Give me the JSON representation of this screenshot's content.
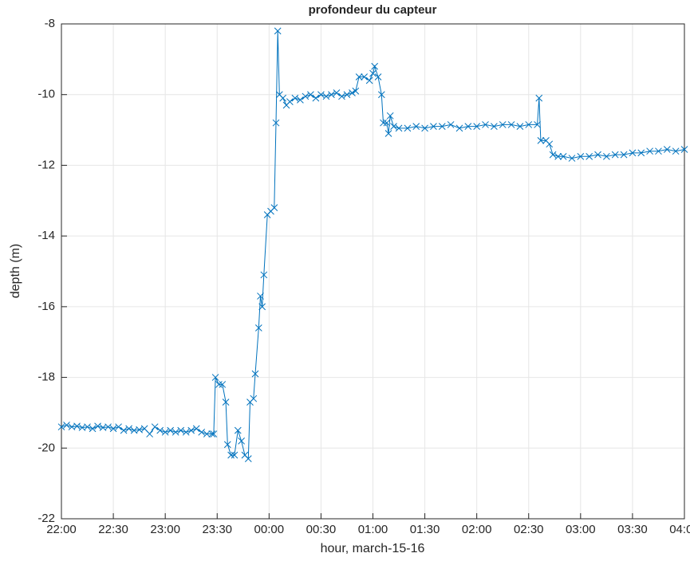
{
  "chart_data": {
    "type": "line",
    "title": "profondeur du capteur",
    "xlabel": "hour, march-15-16",
    "ylabel": "depth (m)",
    "series": [
      {
        "color": "#0072bd",
        "x": [
          "22:00",
          "22:03",
          "22:06",
          "22:09",
          "22:12",
          "22:15",
          "22:18",
          "22:21",
          "22:24",
          "22:27",
          "22:30",
          "22:33",
          "22:36",
          "22:39",
          "22:42",
          "22:45",
          "22:48",
          "22:51",
          "22:54",
          "22:57",
          "23:00",
          "23:03",
          "23:06",
          "23:09",
          "23:12",
          "23:15",
          "23:18",
          "23:21",
          "23:24",
          "23:27",
          "23:28",
          "23:29",
          "23:31",
          "23:33",
          "23:35",
          "23:36",
          "23:38",
          "23:40",
          "23:42",
          "23:44",
          "23:46",
          "23:48",
          "23:49",
          "23:51",
          "23:52",
          "23:54",
          "23:55",
          "23:56",
          "23:57",
          "23:59",
          "00:01",
          "00:03",
          "00:04",
          "00:05",
          "00:06",
          "00:08",
          "00:10",
          "00:12",
          "00:15",
          "00:18",
          "00:21",
          "00:24",
          "00:27",
          "00:30",
          "00:33",
          "00:36",
          "00:39",
          "00:42",
          "00:45",
          "00:48",
          "00:50",
          "00:52",
          "00:55",
          "00:58",
          "01:00",
          "01:01",
          "01:03",
          "01:05",
          "01:06",
          "01:08",
          "01:09",
          "01:10",
          "01:12",
          "01:15",
          "01:20",
          "01:25",
          "01:30",
          "01:35",
          "01:40",
          "01:45",
          "01:50",
          "01:55",
          "02:00",
          "02:05",
          "02:10",
          "02:15",
          "02:20",
          "02:25",
          "02:30",
          "02:35",
          "02:36",
          "02:37",
          "02:40",
          "02:42",
          "02:44",
          "02:47",
          "02:50",
          "02:55",
          "03:00",
          "03:05",
          "03:10",
          "03:15",
          "03:20",
          "03:25",
          "03:30",
          "03:35",
          "03:40",
          "03:45",
          "03:50",
          "03:55",
          "04:00"
        ],
        "values": [
          -19.4,
          -19.35,
          -19.4,
          -19.38,
          -19.42,
          -19.4,
          -19.45,
          -19.38,
          -19.42,
          -19.4,
          -19.45,
          -19.4,
          -19.5,
          -19.45,
          -19.5,
          -19.48,
          -19.45,
          -19.6,
          -19.4,
          -19.5,
          -19.55,
          -19.5,
          -19.55,
          -19.5,
          -19.55,
          -19.5,
          -19.45,
          -19.55,
          -19.6,
          -19.6,
          -19.6,
          -18.0,
          -18.2,
          -18.2,
          -18.7,
          -19.9,
          -20.2,
          -20.2,
          -19.5,
          -19.8,
          -20.2,
          -20.3,
          -18.7,
          -18.6,
          -17.9,
          -16.6,
          -15.7,
          -16.0,
          -15.1,
          -13.4,
          -13.3,
          -13.2,
          -10.8,
          -8.2,
          -10.0,
          -10.1,
          -10.3,
          -10.2,
          -10.1,
          -10.15,
          -10.05,
          -10.0,
          -10.1,
          -10.0,
          -10.05,
          -10.0,
          -9.95,
          -10.05,
          -10.0,
          -9.95,
          -9.9,
          -9.5,
          -9.5,
          -9.6,
          -9.4,
          -9.2,
          -9.5,
          -10.0,
          -10.8,
          -10.8,
          -11.1,
          -10.6,
          -10.9,
          -10.95,
          -10.95,
          -10.9,
          -10.95,
          -10.9,
          -10.9,
          -10.85,
          -10.95,
          -10.9,
          -10.9,
          -10.85,
          -10.9,
          -10.85,
          -10.85,
          -10.9,
          -10.85,
          -10.85,
          -10.1,
          -11.3,
          -11.3,
          -11.4,
          -11.7,
          -11.75,
          -11.75,
          -11.8,
          -11.75,
          -11.75,
          -11.7,
          -11.75,
          -11.7,
          -11.7,
          -11.65,
          -11.65,
          -11.6,
          -11.6,
          -11.55,
          -11.6,
          -11.55
        ]
      }
    ],
    "xlim": [
      "22:00",
      "04:00"
    ],
    "xticks": [
      "22:00",
      "22:30",
      "23:00",
      "23:30",
      "00:00",
      "00:30",
      "01:00",
      "01:30",
      "02:00",
      "02:30",
      "03:00",
      "03:30",
      "04:00"
    ],
    "ylim": [
      -22,
      -8
    ],
    "yticks": [
      -22,
      -20,
      -18,
      -16,
      -14,
      -12,
      -10,
      -8
    ],
    "grid": true,
    "marker": "x"
  }
}
